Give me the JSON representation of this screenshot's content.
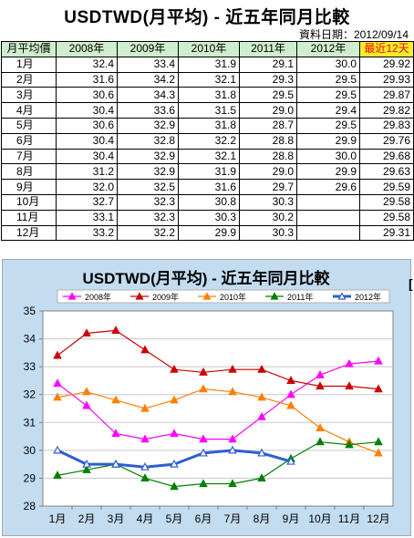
{
  "page": {
    "title": "USDTWD(月平均) - 近五年同月比較",
    "data_date_label": "資料日期：2012/09/14"
  },
  "table": {
    "corner_header": "月平均價",
    "columns": [
      "2008年",
      "2009年",
      "2010年",
      "2011年",
      "2012年",
      "最近12天"
    ],
    "rows": [
      {
        "month": "1月",
        "values": [
          "32.4",
          "33.4",
          "31.9",
          "29.1",
          "30.0",
          "29.92"
        ]
      },
      {
        "month": "2月",
        "values": [
          "31.6",
          "34.2",
          "32.1",
          "29.3",
          "29.5",
          "29.93"
        ]
      },
      {
        "month": "3月",
        "values": [
          "30.6",
          "34.3",
          "31.8",
          "29.5",
          "29.5",
          "29.87"
        ]
      },
      {
        "month": "4月",
        "values": [
          "30.4",
          "33.6",
          "31.5",
          "29.0",
          "29.4",
          "29.82"
        ]
      },
      {
        "month": "5月",
        "values": [
          "30.6",
          "32.9",
          "31.8",
          "28.7",
          "29.5",
          "29.83"
        ]
      },
      {
        "month": "6月",
        "values": [
          "30.4",
          "32.8",
          "32.2",
          "28.8",
          "29.9",
          "29.76"
        ]
      },
      {
        "month": "7月",
        "values": [
          "30.4",
          "32.9",
          "32.1",
          "28.8",
          "30.0",
          "29.68"
        ]
      },
      {
        "month": "8月",
        "values": [
          "31.2",
          "32.9",
          "31.9",
          "29.0",
          "29.9",
          "29.63"
        ]
      },
      {
        "month": "9月",
        "values": [
          "32.0",
          "32.5",
          "31.6",
          "29.7",
          "29.6",
          "29.59"
        ]
      },
      {
        "month": "10月",
        "values": [
          "32.7",
          "32.3",
          "30.8",
          "30.3",
          "",
          "29.58"
        ]
      },
      {
        "month": "11月",
        "values": [
          "33.1",
          "32.3",
          "30.3",
          "30.2",
          "",
          "29.58"
        ]
      },
      {
        "month": "12月",
        "values": [
          "33.2",
          "32.2",
          "29.9",
          "30.3",
          "",
          "29.31"
        ]
      }
    ]
  },
  "side_mark": "[",
  "chart_data": {
    "type": "line",
    "title": "USDTWD(月平均) - 近五年同月比較",
    "xlabel": "",
    "ylabel": "",
    "categories": [
      "1月",
      "2月",
      "3月",
      "4月",
      "5月",
      "6月",
      "7月",
      "8月",
      "9月",
      "10月",
      "11月",
      "12月"
    ],
    "ylim": [
      28,
      35
    ],
    "yticks": [
      28,
      29,
      30,
      31,
      32,
      33,
      34,
      35
    ],
    "grid": true,
    "legend_position": "top",
    "series": [
      {
        "name": "2008年",
        "color": "#ff00ff",
        "marker": "triangle-filled",
        "values": [
          32.4,
          31.6,
          30.6,
          30.4,
          30.6,
          30.4,
          30.4,
          31.2,
          32.0,
          32.7,
          33.1,
          33.2
        ]
      },
      {
        "name": "2009年",
        "color": "#cc0000",
        "marker": "triangle-filled",
        "values": [
          33.4,
          34.2,
          34.3,
          33.6,
          32.9,
          32.8,
          32.9,
          32.9,
          32.5,
          32.3,
          32.3,
          32.2
        ]
      },
      {
        "name": "2010年",
        "color": "#ff8000",
        "marker": "triangle-filled",
        "values": [
          31.9,
          32.1,
          31.8,
          31.5,
          31.8,
          32.2,
          32.1,
          31.9,
          31.6,
          30.8,
          30.3,
          29.9
        ]
      },
      {
        "name": "2011年",
        "color": "#008000",
        "marker": "triangle-filled",
        "values": [
          29.1,
          29.3,
          29.5,
          29.0,
          28.7,
          28.8,
          28.8,
          29.0,
          29.7,
          30.3,
          30.2,
          30.3
        ]
      },
      {
        "name": "2012年",
        "color": "#2f5fd0",
        "marker": "triangle-open",
        "values": [
          30.0,
          29.5,
          29.5,
          29.4,
          29.5,
          29.9,
          30.0,
          29.9,
          29.6,
          null,
          null,
          null
        ]
      }
    ]
  }
}
